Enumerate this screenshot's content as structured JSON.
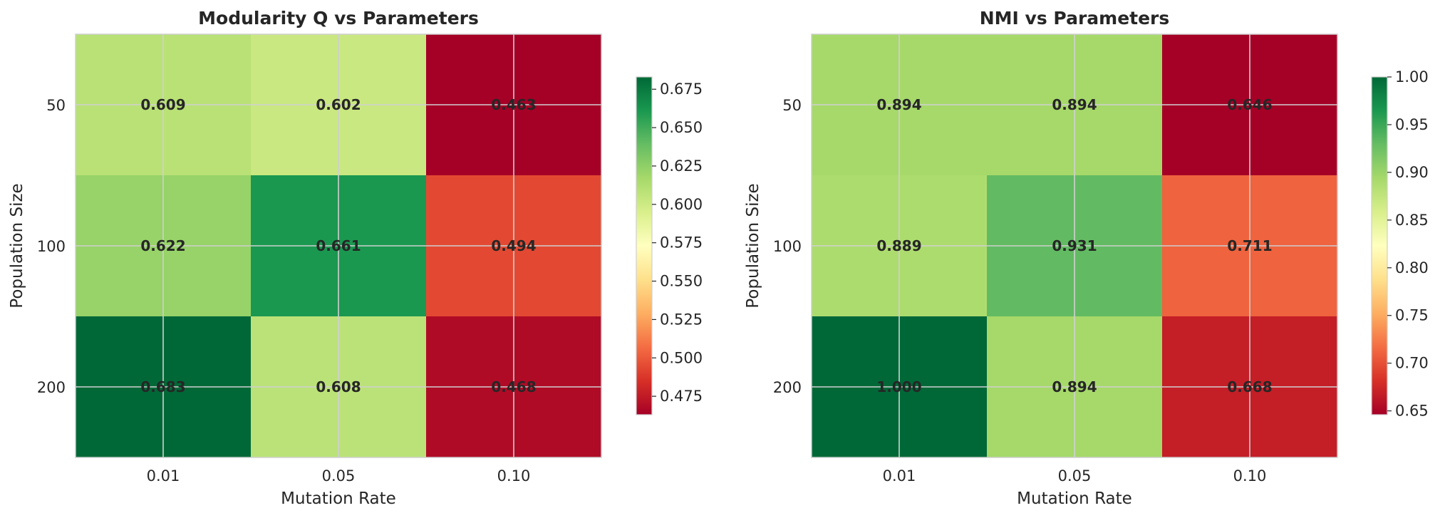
{
  "colormap": [
    "#a50026",
    "#d73027",
    "#f46d43",
    "#fdae61",
    "#fee08b",
    "#ffffbf",
    "#d9ef8b",
    "#a6d96a",
    "#66bd63",
    "#1a9850",
    "#006837"
  ],
  "chart_data": [
    {
      "type": "heatmap",
      "title": "Modularity Q vs Parameters",
      "xlabel": "Mutation Rate",
      "ylabel": "Population Size",
      "x_categories": [
        "0.01",
        "0.05",
        "0.10"
      ],
      "y_categories": [
        "50",
        "100",
        "200"
      ],
      "values": [
        [
          0.609,
          0.602,
          0.463
        ],
        [
          0.622,
          0.661,
          0.494
        ],
        [
          0.683,
          0.608,
          0.468
        ]
      ],
      "cell_labels": [
        [
          "0.609",
          "0.602",
          "0.463"
        ],
        [
          "0.622",
          "0.661",
          "0.494"
        ],
        [
          "0.683",
          "0.608",
          "0.468"
        ]
      ],
      "colorbar": {
        "vmin": 0.463,
        "vmax": 0.683,
        "ticks": [
          0.475,
          0.5,
          0.525,
          0.55,
          0.575,
          0.6,
          0.625,
          0.65,
          0.675
        ],
        "tick_labels": [
          "0.475",
          "0.500",
          "0.525",
          "0.550",
          "0.575",
          "0.600",
          "0.625",
          "0.650",
          "0.675"
        ]
      },
      "grid": true
    },
    {
      "type": "heatmap",
      "title": "NMI vs Parameters",
      "xlabel": "Mutation Rate",
      "ylabel": "Population Size",
      "x_categories": [
        "0.01",
        "0.05",
        "0.10"
      ],
      "y_categories": [
        "50",
        "100",
        "200"
      ],
      "values": [
        [
          0.894,
          0.894,
          0.646
        ],
        [
          0.889,
          0.931,
          0.711
        ],
        [
          1.0,
          0.894,
          0.668
        ]
      ],
      "cell_labels": [
        [
          "0.894",
          "0.894",
          "0.646"
        ],
        [
          "0.889",
          "0.931",
          "0.711"
        ],
        [
          "1.000",
          "0.894",
          "0.668"
        ]
      ],
      "colorbar": {
        "vmin": 0.646,
        "vmax": 1.0,
        "ticks": [
          0.65,
          0.7,
          0.75,
          0.8,
          0.85,
          0.9,
          0.95,
          1.0
        ],
        "tick_labels": [
          "0.65",
          "0.70",
          "0.75",
          "0.80",
          "0.85",
          "0.90",
          "0.95",
          "1.00"
        ]
      },
      "grid": true
    }
  ]
}
